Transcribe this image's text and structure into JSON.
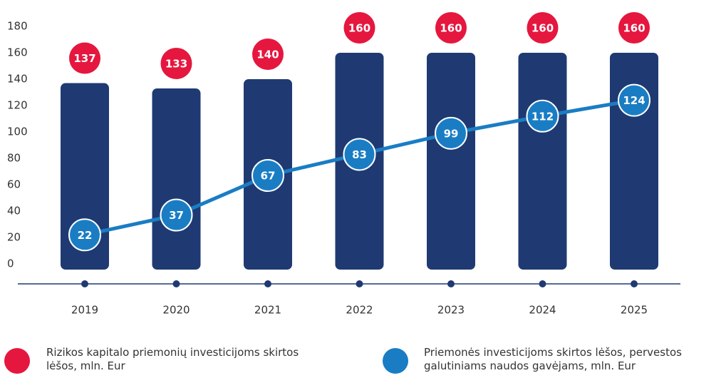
{
  "chart_data": {
    "type": "bar_line",
    "categories": [
      "2019",
      "2020",
      "2021",
      "2022",
      "2023",
      "2024",
      "2025"
    ],
    "series": [
      {
        "name": "Rizikos kapitalo priemonių investicijoms skirtos lėšos, mln. Eur",
        "color": "#e5173f",
        "bar_color": "#1f3a72",
        "values": [
          137,
          133,
          140,
          160,
          160,
          160,
          160
        ]
      },
      {
        "name": "Priemonės investicijoms skirtos lėšos, pervestos galutiniams naudos gavėjams, mln. Eur",
        "color": "#1a7dc4",
        "values": [
          22,
          37,
          67,
          83,
          99,
          112,
          124
        ]
      }
    ],
    "ylim": [
      0,
      180
    ],
    "yticks": [
      0,
      20,
      40,
      60,
      80,
      100,
      120,
      140,
      160,
      180
    ],
    "grid": false
  }
}
